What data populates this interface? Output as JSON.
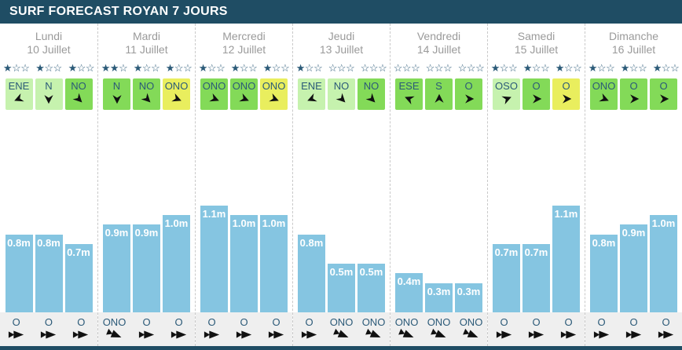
{
  "header": {
    "title": "SURF FORECAST ROYAN 7 JOURS"
  },
  "colors": {
    "titlebar_bg": "#1f4d64",
    "bar_blue": "#85c5e1",
    "strip_gray": "#efefef",
    "text_gray": "#9a9a9a",
    "text_navy": "#2b5a78",
    "wind_levels": {
      "light": "#c6f2ae",
      "medium": "#83da58",
      "strong": "#e9ee5e"
    }
  },
  "stars_max": 3,
  "chart_data": {
    "type": "bar",
    "unit": "m",
    "categories": [
      "Lundi 10 Juillet",
      "Mardi 11 Juillet",
      "Mercredi 12 Juillet",
      "Jeudi 13 Juillet",
      "Vendredi 14 Juillet",
      "Samedi 15 Juillet",
      "Dimanche 16 Juillet"
    ],
    "values_per_day": [
      [
        0.8,
        0.8,
        0.7
      ],
      [
        0.9,
        0.9,
        1.0
      ],
      [
        1.1,
        1.0,
        1.0
      ],
      [
        0.8,
        0.5,
        0.5
      ],
      [
        0.4,
        0.3,
        0.3
      ],
      [
        0.7,
        0.7,
        1.1
      ],
      [
        0.8,
        0.9,
        1.0
      ]
    ],
    "ylim": [
      0,
      2
    ]
  },
  "days": [
    {
      "name": "Lundi",
      "date": "10 Juillet",
      "stars": [
        1,
        1,
        1
      ],
      "wind": [
        {
          "dir": "ENE",
          "level": "light",
          "rot": 157.5
        },
        {
          "dir": "N",
          "level": "light",
          "rot": 90
        },
        {
          "dir": "NO",
          "level": "medium",
          "rot": 45
        }
      ],
      "waves": [
        {
          "label": "0.8m",
          "height_m": 0.8
        },
        {
          "label": "0.8m",
          "height_m": 0.8
        },
        {
          "label": "0.7m",
          "height_m": 0.7
        }
      ],
      "swell": [
        {
          "dir": "O",
          "rot": 0
        },
        {
          "dir": "O",
          "rot": 0
        },
        {
          "dir": "O",
          "rot": 0
        }
      ]
    },
    {
      "name": "Mardi",
      "date": "11 Juillet",
      "stars": [
        2,
        1,
        1
      ],
      "wind": [
        {
          "dir": "N",
          "level": "medium",
          "rot": 90
        },
        {
          "dir": "NO",
          "level": "medium",
          "rot": 45
        },
        {
          "dir": "ONO",
          "level": "strong",
          "rot": 22.5
        }
      ],
      "waves": [
        {
          "label": "0.9m",
          "height_m": 0.9
        },
        {
          "label": "0.9m",
          "height_m": 0.9
        },
        {
          "label": "1.0m",
          "height_m": 1.0
        }
      ],
      "swell": [
        {
          "dir": "ONO",
          "rot": 22.5
        },
        {
          "dir": "O",
          "rot": 0
        },
        {
          "dir": "O",
          "rot": 0
        }
      ]
    },
    {
      "name": "Mercredi",
      "date": "12 Juillet",
      "stars": [
        1,
        1,
        1
      ],
      "wind": [
        {
          "dir": "ONO",
          "level": "medium",
          "rot": 22.5
        },
        {
          "dir": "ONO",
          "level": "medium",
          "rot": 22.5
        },
        {
          "dir": "ONO",
          "level": "strong",
          "rot": 22.5
        }
      ],
      "waves": [
        {
          "label": "1.1m",
          "height_m": 1.1
        },
        {
          "label": "1.0m",
          "height_m": 1.0
        },
        {
          "label": "1.0m",
          "height_m": 1.0
        }
      ],
      "swell": [
        {
          "dir": "O",
          "rot": 0
        },
        {
          "dir": "O",
          "rot": 0
        },
        {
          "dir": "O",
          "rot": 0
        }
      ]
    },
    {
      "name": "Jeudi",
      "date": "13 Juillet",
      "stars": [
        1,
        0,
        0
      ],
      "wind": [
        {
          "dir": "ENE",
          "level": "light",
          "rot": 157.5
        },
        {
          "dir": "NO",
          "level": "light",
          "rot": 45
        },
        {
          "dir": "NO",
          "level": "medium",
          "rot": 45
        }
      ],
      "waves": [
        {
          "label": "0.8m",
          "height_m": 0.8
        },
        {
          "label": "0.5m",
          "height_m": 0.5
        },
        {
          "label": "0.5m",
          "height_m": 0.5
        }
      ],
      "swell": [
        {
          "dir": "O",
          "rot": 0
        },
        {
          "dir": "ONO",
          "rot": 22.5
        },
        {
          "dir": "ONO",
          "rot": 22.5
        }
      ]
    },
    {
      "name": "Vendredi",
      "date": "14 Juillet",
      "stars": [
        0,
        0,
        0
      ],
      "wind": [
        {
          "dir": "ESE",
          "level": "medium",
          "rot": 202.5
        },
        {
          "dir": "S",
          "level": "medium",
          "rot": 270
        },
        {
          "dir": "O",
          "level": "medium",
          "rot": 0
        }
      ],
      "waves": [
        {
          "label": "0.4m",
          "height_m": 0.4
        },
        {
          "label": "0.3m",
          "height_m": 0.3
        },
        {
          "label": "0.3m",
          "height_m": 0.3
        }
      ],
      "swell": [
        {
          "dir": "ONO",
          "rot": 22.5
        },
        {
          "dir": "ONO",
          "rot": 22.5
        },
        {
          "dir": "ONO",
          "rot": 22.5
        }
      ]
    },
    {
      "name": "Samedi",
      "date": "15 Juillet",
      "stars": [
        1,
        1,
        1
      ],
      "wind": [
        {
          "dir": "OSO",
          "level": "light",
          "rot": -22.5
        },
        {
          "dir": "O",
          "level": "medium",
          "rot": 0
        },
        {
          "dir": "O",
          "level": "strong",
          "rot": 0
        }
      ],
      "waves": [
        {
          "label": "0.7m",
          "height_m": 0.7
        },
        {
          "label": "0.7m",
          "height_m": 0.7
        },
        {
          "label": "1.1m",
          "height_m": 1.1
        }
      ],
      "swell": [
        {
          "dir": "O",
          "rot": 0
        },
        {
          "dir": "O",
          "rot": 0
        },
        {
          "dir": "O",
          "rot": 0
        }
      ]
    },
    {
      "name": "Dimanche",
      "date": "16 Juillet",
      "stars": [
        1,
        1,
        1
      ],
      "wind": [
        {
          "dir": "ONO",
          "level": "medium",
          "rot": 22.5
        },
        {
          "dir": "O",
          "level": "medium",
          "rot": 0
        },
        {
          "dir": "O",
          "level": "medium",
          "rot": 0
        }
      ],
      "waves": [
        {
          "label": "0.8m",
          "height_m": 0.8
        },
        {
          "label": "0.9m",
          "height_m": 0.9
        },
        {
          "label": "1.0m",
          "height_m": 1.0
        }
      ],
      "swell": [
        {
          "dir": "O",
          "rot": 0
        },
        {
          "dir": "O",
          "rot": 0
        },
        {
          "dir": "O",
          "rot": 0
        }
      ]
    }
  ]
}
